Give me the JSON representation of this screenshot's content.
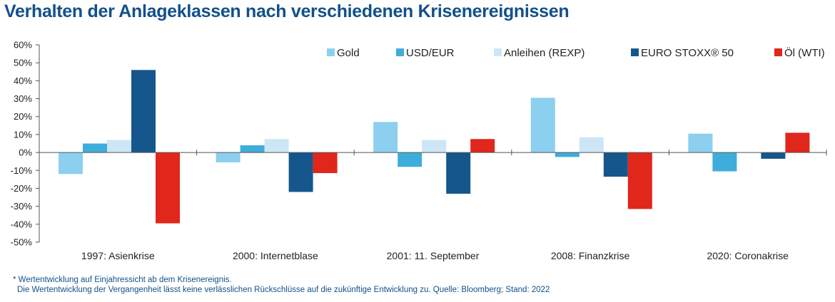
{
  "title": "Verhalten der Anlageklassen nach verschiedenen Krisenereignissen",
  "footnote_1": "* Wertentwicklung auf Einjahressicht ab dem Krisenereignis.",
  "footnote_2": "Die Wertentwicklung der Vergangenheit lässt keine verlässlichen Rückschlüsse auf die zukünftige Entwicklung zu. Quelle: Bloomberg; Stand: 2022",
  "chart_data": {
    "type": "bar",
    "title": "Verhalten der Anlageklassen nach verschiedenen Krisenereignissen",
    "xlabel": "",
    "ylabel": "",
    "ylim": [
      -0.5,
      0.6
    ],
    "y_ticks": [
      0.6,
      0.5,
      0.4,
      0.3,
      0.2,
      0.1,
      0.0,
      -0.1,
      -0.2,
      -0.3,
      -0.4,
      -0.5
    ],
    "y_tick_labels": [
      "60%",
      "50%",
      "40%",
      "30%",
      "20%",
      "10%",
      "0%",
      "-10%",
      "-20%",
      "-30%",
      "-40%",
      "-50%"
    ],
    "grid": false,
    "legend_position": "top-right",
    "categories": [
      "1997: Asienkrise",
      "2000: Internetblase",
      "2001: 11. September",
      "2008: Finanzkrise",
      "2020: Coronakrise"
    ],
    "series": [
      {
        "name": "Gold",
        "color": "#8ccfef",
        "values": [
          -0.12,
          -0.055,
          0.17,
          0.305,
          0.105
        ]
      },
      {
        "name": "USD/EUR",
        "color": "#3eaddb",
        "values": [
          0.05,
          0.04,
          -0.08,
          -0.025,
          -0.105
        ]
      },
      {
        "name": "Anleihen (REXP)",
        "color": "#cce6f5",
        "values": [
          0.07,
          0.075,
          0.07,
          0.085,
          null
        ]
      },
      {
        "name": "EURO STOXX® 50",
        "color": "#15578d",
        "values": [
          0.46,
          -0.22,
          -0.23,
          -0.135,
          -0.035
        ]
      },
      {
        "name": "Öl (WTI)",
        "color": "#e1261c",
        "values": [
          -0.395,
          -0.115,
          0.075,
          -0.315,
          0.11
        ]
      }
    ]
  }
}
